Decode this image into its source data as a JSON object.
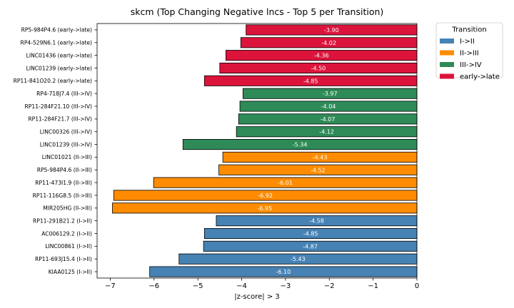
{
  "chart_data": {
    "type": "bar",
    "orientation": "horizontal",
    "title": "skcm (Top Changing Negative lncs - Top 5 per Transition)",
    "xlabel": "|z-score| > 3",
    "ylabel": "",
    "xlim": [
      -7.3,
      0
    ],
    "xticks": [
      -7,
      -6,
      -5,
      -4,
      -3,
      -2,
      -1,
      0
    ],
    "xtick_labels": [
      "−7",
      "−6",
      "−5",
      "−4",
      "−3",
      "−2",
      "−1",
      "0"
    ],
    "grid": false,
    "legend": {
      "title": "Transition",
      "placement": "outside-top-right",
      "entries": [
        {
          "label": "I->II",
          "color": "#4682b4"
        },
        {
          "label": "II->III",
          "color": "#ff8c00"
        },
        {
          "label": "III->IV",
          "color": "#2e8b57"
        },
        {
          "label": "early->late",
          "color": "#dc143c"
        }
      ]
    },
    "bars": [
      {
        "label": "RP5-984P4.6 (early->late)",
        "value": -3.9,
        "value_label": "-3.90",
        "group": "early->late",
        "color": "#dc143c"
      },
      {
        "label": "RP4-529N6.1 (early->late)",
        "value": -4.02,
        "value_label": "-4.02",
        "group": "early->late",
        "color": "#dc143c"
      },
      {
        "label": "LINC01436 (early->late)",
        "value": -4.36,
        "value_label": "-4.36",
        "group": "early->late",
        "color": "#dc143c"
      },
      {
        "label": "LINC01239 (early->late)",
        "value": -4.5,
        "value_label": "-4.50",
        "group": "early->late",
        "color": "#dc143c"
      },
      {
        "label": "RP11-841O20.2 (early->late)",
        "value": -4.85,
        "value_label": "-4.85",
        "group": "early->late",
        "color": "#dc143c"
      },
      {
        "label": "RP4-718J7.4 (III->IV)",
        "value": -3.97,
        "value_label": "-3.97",
        "group": "III->IV",
        "color": "#2e8b57"
      },
      {
        "label": "RP11-284F21.10 (III->IV)",
        "value": -4.04,
        "value_label": "-4.04",
        "group": "III->IV",
        "color": "#2e8b57"
      },
      {
        "label": "RP11-284F21.7 (III->IV)",
        "value": -4.07,
        "value_label": "-4.07",
        "group": "III->IV",
        "color": "#2e8b57"
      },
      {
        "label": "LINC00326 (III->IV)",
        "value": -4.12,
        "value_label": "-4.12",
        "group": "III->IV",
        "color": "#2e8b57"
      },
      {
        "label": "LINC01239 (III->IV)",
        "value": -5.34,
        "value_label": "-5.34",
        "group": "III->IV",
        "color": "#2e8b57"
      },
      {
        "label": "LINC01021 (II->III)",
        "value": -4.43,
        "value_label": "-4.43",
        "group": "II->III",
        "color": "#ff8c00"
      },
      {
        "label": "RP5-984P4.6 (II->III)",
        "value": -4.52,
        "value_label": "-4.52",
        "group": "II->III",
        "color": "#ff8c00"
      },
      {
        "label": "RP11-473I1.9 (II->III)",
        "value": -6.01,
        "value_label": "-6.01",
        "group": "II->III",
        "color": "#ff8c00"
      },
      {
        "label": "RP11-116G8.5 (II->III)",
        "value": -6.92,
        "value_label": "-6.92",
        "group": "II->III",
        "color": "#ff8c00"
      },
      {
        "label": "MIR205HG (II->III)",
        "value": -6.95,
        "value_label": "-6.95",
        "group": "II->III",
        "color": "#ff8c00"
      },
      {
        "label": "RP11-291B21.2 (I->II)",
        "value": -4.58,
        "value_label": "-4.58",
        "group": "I->II",
        "color": "#4682b4"
      },
      {
        "label": "AC006129.2 (I->II)",
        "value": -4.85,
        "value_label": "-4.85",
        "group": "I->II",
        "color": "#4682b4"
      },
      {
        "label": "LINC00861 (I->II)",
        "value": -4.87,
        "value_label": "-4.87",
        "group": "I->II",
        "color": "#4682b4"
      },
      {
        "label": "RP11-693J15.4 (I->II)",
        "value": -5.43,
        "value_label": "-5.43",
        "group": "I->II",
        "color": "#4682b4"
      },
      {
        "label": "KIAA0125 (I->II)",
        "value": -6.1,
        "value_label": "-6.10",
        "group": "I->II",
        "color": "#4682b4"
      }
    ]
  }
}
